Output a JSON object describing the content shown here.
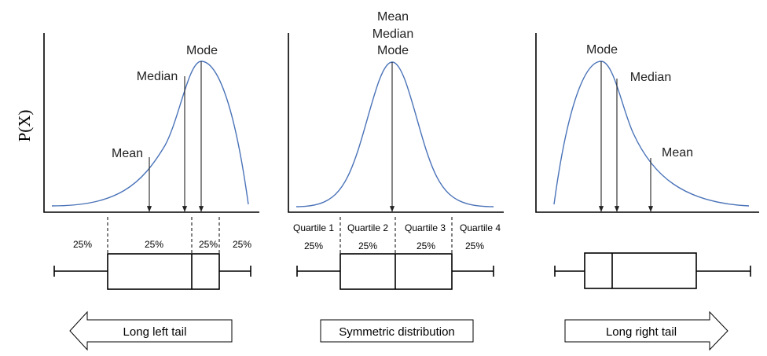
{
  "y_axis_label": "P(X)",
  "colors": {
    "curve": "#4a73b8",
    "ink": "#000000"
  },
  "panels": [
    {
      "id": "left-skew",
      "curve_labels": [
        "Mean",
        "Median",
        "Mode"
      ],
      "quarter_labels": [
        "25%",
        "25%",
        "25%",
        "25%"
      ],
      "quartile_headers": [],
      "banner": "Long left tail",
      "arrow_direction": "left"
    },
    {
      "id": "symmetric",
      "curve_labels": [
        "Mean",
        "Median",
        "Mode"
      ],
      "quarter_labels": [
        "25%",
        "25%",
        "25%",
        "25%"
      ],
      "quartile_headers": [
        "Quartile 1",
        "Quartile 2",
        "Quartile 3",
        "Quartile 4"
      ],
      "banner": "Symmetric distribution",
      "arrow_direction": "none"
    },
    {
      "id": "right-skew",
      "curve_labels": [
        "Mode",
        "Median",
        "Mean"
      ],
      "quarter_labels": [],
      "quartile_headers": [],
      "banner": "Long right tail",
      "arrow_direction": "right"
    }
  ]
}
